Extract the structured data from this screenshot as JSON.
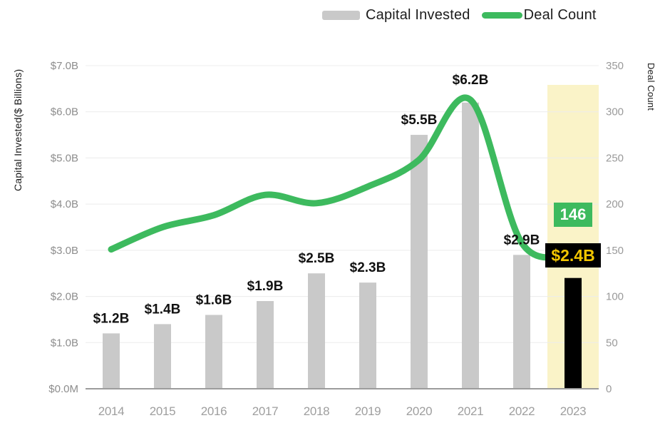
{
  "chart": {
    "legend": {
      "capital_label": "Capital Invested",
      "deals_label": "Deal Count"
    },
    "left_axis": {
      "title": "Capital Invested($ Billions)",
      "tick_labels": [
        "$7.0B",
        "$6.0B",
        "$5.0B",
        "$4.0B",
        "$3.0B",
        "$2.0B",
        "$1.0B",
        "$0.0M"
      ]
    },
    "right_axis": {
      "title": "Deal Count",
      "tick_labels": [
        "350",
        "300",
        "250",
        "200",
        "150",
        "100",
        "50",
        "0"
      ]
    }
  },
  "chart_data": {
    "type": "combo-bar-line",
    "title": "",
    "categories": [
      "2014",
      "2015",
      "2016",
      "2017",
      "2018",
      "2019",
      "2020",
      "2021",
      "2022",
      "2023"
    ],
    "series": [
      {
        "name": "Capital Invested",
        "type": "bar",
        "axis": "left",
        "unit": "$ Billions",
        "values": [
          1.2,
          1.4,
          1.6,
          1.9,
          2.5,
          2.3,
          5.5,
          6.2,
          2.9,
          2.4
        ],
        "value_labels": [
          "$1.2B",
          "$1.4B",
          "$1.6B",
          "$1.9B",
          "$2.5B",
          "$2.3B",
          "$5.5B",
          "$6.2B",
          "$2.9B",
          "$2.4B"
        ]
      },
      {
        "name": "Deal Count",
        "type": "line",
        "axis": "right",
        "values": [
          151,
          175,
          188,
          210,
          201,
          219,
          248,
          313,
          158,
          146
        ]
      }
    ],
    "axis_ranges": {
      "left": [
        0,
        7
      ],
      "right": [
        0,
        350
      ]
    },
    "grid": true,
    "legend_position": "top-right",
    "highlight": {
      "category": "2023",
      "capital_badge_label": "$2.4B",
      "deal_count_badge_label": "146"
    }
  },
  "colors": {
    "bar": "#c9c9c9",
    "highlight_bar": "#000000",
    "line": "#3dba5e",
    "highlight_band": "#faf3c8",
    "badge_green": "#3dba5e",
    "badge_black": "#000000",
    "badge_text_yellow": "#f2c500",
    "badge_text_white": "#ffffff",
    "grid": "#ececec",
    "axis_line": "#9c9c9c",
    "left_tick_text": "#8d8d8d",
    "right_tick_text": "#9a9a9a",
    "year_text": "#9e9e9e",
    "value_label_text": "#111111"
  }
}
